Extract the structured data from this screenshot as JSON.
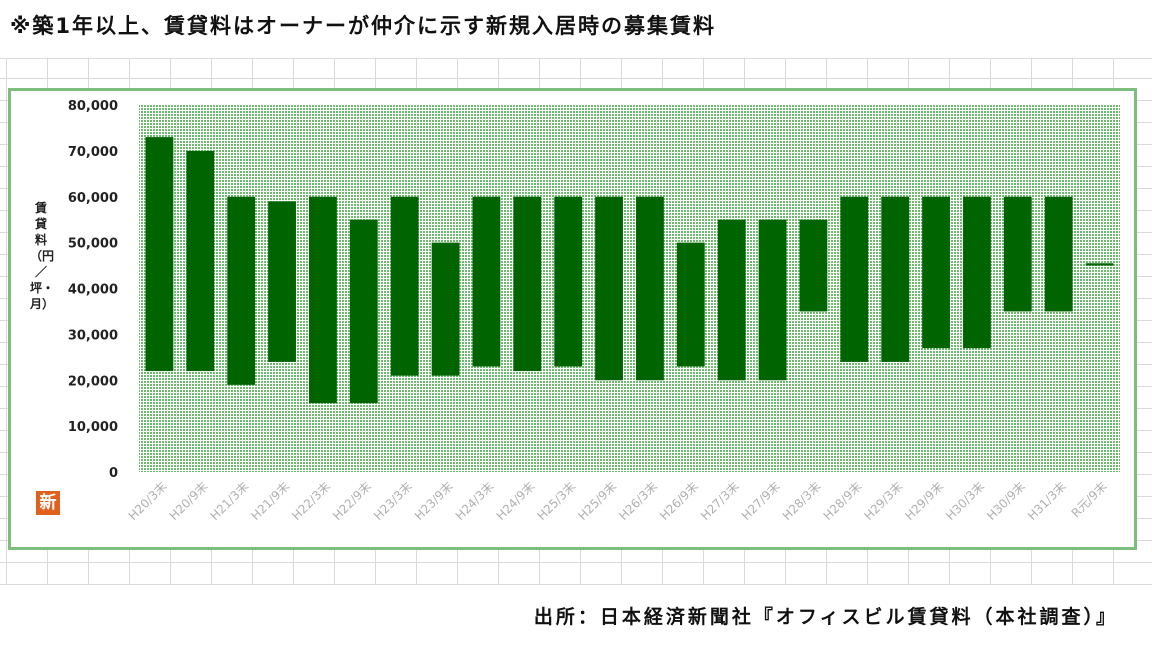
{
  "header": {
    "note": "※築1年以上、賃貸料はオーナーが仲介に示す新規入居時の募集賃料"
  },
  "footer": {
    "source": "出所：日本経済新聞社『オフィスビル賃貸料（本社調査）』"
  },
  "badge": {
    "label": "新"
  },
  "colors": {
    "bar": "#006400",
    "plot_bg": "#c8e6c8",
    "frame": "#7dbe7d"
  },
  "chart_data": {
    "type": "bar",
    "subtype": "floating-range",
    "ylabel": "賃貸料（円／坪・月）",
    "ylim": [
      0,
      80000
    ],
    "yticks": [
      "0",
      "10,000",
      "20,000",
      "30,000",
      "40,000",
      "50,000",
      "60,000",
      "70,000",
      "80,000"
    ],
    "categories": [
      "H20/3末",
      "H20/9末",
      "H21/3末",
      "H21/9末",
      "H22/3末",
      "H22/9末",
      "H23/3末",
      "H23/9末",
      "H24/3末",
      "H24/9末",
      "H25/3末",
      "H25/9末",
      "H26/3末",
      "H26/9末",
      "H27/3末",
      "H27/9末",
      "H28/3末",
      "H28/9末",
      "H29/3末",
      "H29/9末",
      "H30/3末",
      "H30/9末",
      "H31/3末",
      "R元/9末"
    ],
    "series": [
      {
        "low": [
          22000,
          22000,
          19000,
          24000,
          15000,
          15000,
          21000,
          21000,
          23000,
          22000,
          23000,
          20000,
          20000,
          23000,
          20000,
          20000,
          35000,
          24000,
          24000,
          27000,
          27000,
          35000,
          35000,
          45000
        ],
        "high": [
          73000,
          70000,
          60000,
          59000,
          60000,
          55000,
          60000,
          50000,
          60000,
          60000,
          60000,
          60000,
          60000,
          50000,
          55000,
          55000,
          55000,
          60000,
          60000,
          60000,
          60000,
          60000,
          60000,
          45500
        ]
      }
    ],
    "grid": false,
    "legend": "none"
  }
}
